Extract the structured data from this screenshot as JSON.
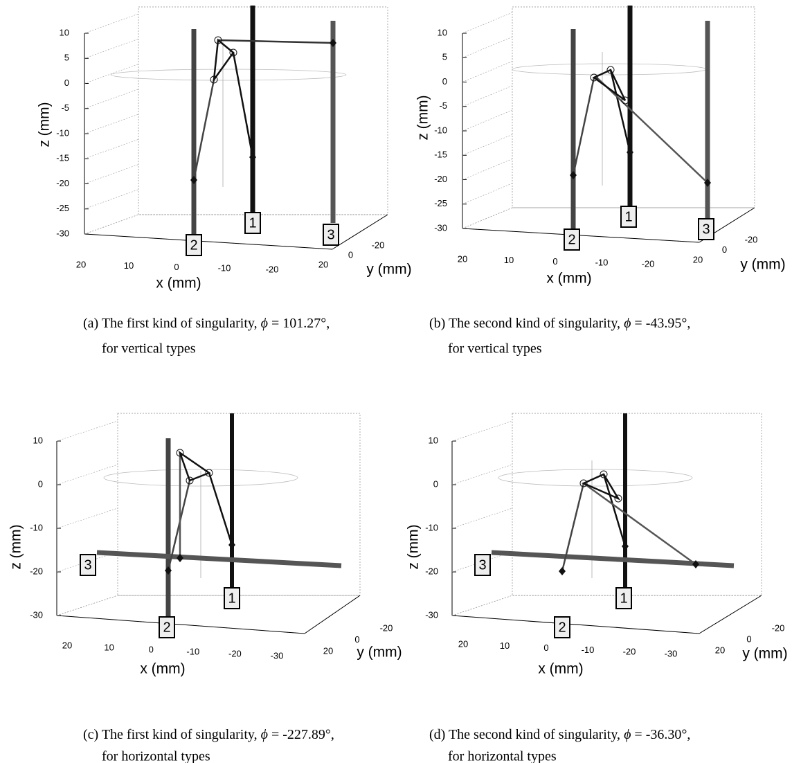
{
  "panels": [
    {
      "zlabel": "z (mm)",
      "xlabel": "x (mm)",
      "ylabel": "y (mm)",
      "zticks": [
        10,
        5,
        0,
        -5,
        -10,
        -15,
        -20,
        -25,
        -30
      ],
      "xticks": [
        20,
        10,
        0,
        -10,
        -20
      ],
      "yticks": [
        20,
        0,
        -20
      ],
      "rods": [
        "1",
        "2",
        "3"
      ],
      "caption": "(a) The first kind of singularity,",
      "phi": "ϕ",
      "phi_value": "= 101.27°,",
      "caption_line2": "for vertical types"
    },
    {
      "zlabel": "z (mm)",
      "xlabel": "x (mm)",
      "ylabel": "y (mm)",
      "zticks": [
        10,
        5,
        0,
        -5,
        -10,
        -15,
        -20,
        -25,
        -30
      ],
      "xticks": [
        20,
        10,
        0,
        -10,
        -20
      ],
      "yticks": [
        20,
        0,
        -20
      ],
      "rods": [
        "1",
        "2",
        "3"
      ],
      "caption": "(b) The second kind of singularity,",
      "phi": "ϕ",
      "phi_value": "= -43.95°,",
      "caption_line2": "for vertical types"
    },
    {
      "zlabel": "z (mm)",
      "xlabel": "x (mm)",
      "ylabel": "y (mm)",
      "zticks": [
        10,
        0,
        -10,
        -20,
        -30
      ],
      "xticks": [
        20,
        10,
        0,
        -10,
        -20,
        -30
      ],
      "yticks": [
        20,
        0,
        -20
      ],
      "rods": [
        "1",
        "2",
        "3"
      ],
      "caption": "(c) The first kind of singularity,",
      "phi": "ϕ",
      "phi_value": "= -227.89°,",
      "caption_line2": "for horizontal types"
    },
    {
      "zlabel": "z (mm)",
      "xlabel": "x (mm)",
      "ylabel": "y (mm)",
      "zticks": [
        10,
        0,
        -10,
        -20,
        -30
      ],
      "xticks": [
        20,
        10,
        0,
        -10,
        -20,
        -30
      ],
      "yticks": [
        20,
        0,
        -20
      ],
      "rods": [
        "1",
        "2",
        "3"
      ],
      "caption": "(d) The second kind of singularity,",
      "phi": "ϕ",
      "phi_value": "= -36.30°,",
      "caption_line2": "for horizontal types"
    }
  ]
}
